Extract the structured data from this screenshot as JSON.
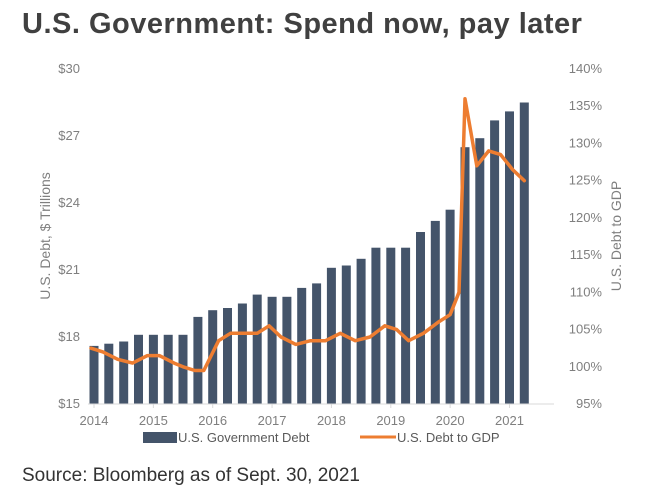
{
  "header": {
    "title": "U.S. Government: Spend now, pay later"
  },
  "footer": {
    "source": "Source: Bloomberg as of Sept. 30, 2021"
  },
  "colors": {
    "bars": "#44546a",
    "line": "#ed7d31",
    "text": "#7f7f7f",
    "title": "#404040"
  },
  "chart_data": {
    "type": "bar+line",
    "title": "U.S. Government: Spend now, pay later",
    "x_ticks": [
      "2014",
      "2015",
      "2016",
      "2017",
      "2018",
      "2019",
      "2020",
      "2021"
    ],
    "x_range": [
      2014,
      2021.75
    ],
    "left_axis": {
      "label": "U.S. Debt, $ Trillions",
      "min": 15,
      "max": 30,
      "ticks": [
        "$15",
        "$18",
        "$21",
        "$24",
        "$27",
        "$30"
      ],
      "tick_values": [
        15,
        18,
        21,
        24,
        27,
        30
      ]
    },
    "right_axis": {
      "label": "U.S. Debt to GDP",
      "min": 95,
      "max": 140,
      "ticks": [
        "95%",
        "100%",
        "105%",
        "110%",
        "115%",
        "120%",
        "125%",
        "130%",
        "135%",
        "140%"
      ],
      "tick_values": [
        95,
        100,
        105,
        110,
        115,
        120,
        125,
        130,
        135,
        140
      ]
    },
    "grid": false,
    "legend_position": "bottom",
    "series": [
      {
        "name": "U.S. Government Debt",
        "type": "bar",
        "axis": "left",
        "x": [
          2014.0,
          2014.25,
          2014.5,
          2014.75,
          2015.0,
          2015.25,
          2015.5,
          2015.75,
          2016.0,
          2016.25,
          2016.5,
          2016.75,
          2017.0,
          2017.25,
          2017.5,
          2017.75,
          2018.0,
          2018.25,
          2018.5,
          2018.75,
          2019.0,
          2019.25,
          2019.5,
          2019.75,
          2020.0,
          2020.25,
          2020.5,
          2020.75,
          2021.0,
          2021.25
        ],
        "values": [
          17.6,
          17.7,
          17.8,
          18.1,
          18.1,
          18.1,
          18.1,
          18.9,
          19.2,
          19.3,
          19.5,
          19.9,
          19.8,
          19.8,
          20.2,
          20.4,
          21.1,
          21.2,
          21.5,
          22.0,
          22.0,
          22.0,
          22.7,
          23.2,
          23.7,
          26.5,
          26.9,
          27.7,
          28.1,
          28.5
        ]
      },
      {
        "name": "U.S. Debt to GDP",
        "type": "line",
        "axis": "right",
        "x": [
          2013.95,
          2014.15,
          2014.4,
          2014.65,
          2014.9,
          2015.1,
          2015.35,
          2015.5,
          2015.7,
          2015.85,
          2016.1,
          2016.3,
          2016.5,
          2016.75,
          2016.95,
          2017.15,
          2017.4,
          2017.65,
          2017.9,
          2018.15,
          2018.4,
          2018.65,
          2018.9,
          2019.1,
          2019.3,
          2019.55,
          2019.8,
          2020.0,
          2020.15,
          2020.25,
          2020.45,
          2020.65,
          2020.85,
          2021.05,
          2021.25
        ],
        "values": [
          102.5,
          102.0,
          101.0,
          100.5,
          101.5,
          101.5,
          100.5,
          100.0,
          99.5,
          99.5,
          103.5,
          104.5,
          104.5,
          104.5,
          105.5,
          104.0,
          103.0,
          103.5,
          103.5,
          104.5,
          103.5,
          104.0,
          105.5,
          105.0,
          103.5,
          104.5,
          106.0,
          107.0,
          110.0,
          136.0,
          127.0,
          129.0,
          128.5,
          126.5,
          125.0
        ]
      }
    ]
  }
}
